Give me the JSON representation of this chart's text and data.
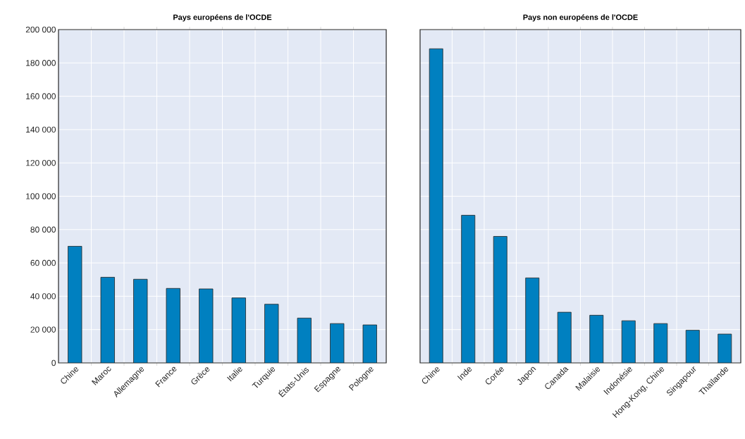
{
  "chart_data": [
    {
      "type": "bar",
      "title": "Pays européens de l'OCDE",
      "categories": [
        "Chine",
        "Maroc",
        "Allemagne",
        "France",
        "Grèce",
        "Italie",
        "Turquie",
        "États-Unis",
        "Espagne",
        "Pologne"
      ],
      "values": [
        70000,
        51400,
        50200,
        44700,
        44400,
        39000,
        35200,
        26900,
        23600,
        22800
      ],
      "color": "#0080c0",
      "ylim": [
        0,
        200000
      ],
      "yticks": [
        0,
        {
          "value": 20000,
          "label": "20 000"
        },
        {
          "value": 40000,
          "label": "40 000"
        },
        {
          "value": 60000,
          "label": "60 000"
        },
        {
          "value": 80000,
          "label": "80 000"
        },
        {
          "value": 100000,
          "label": "100 000"
        },
        {
          "value": 120000,
          "label": "120 000"
        },
        {
          "value": 140000,
          "label": "140 000"
        },
        {
          "value": 160000,
          "label": "160 000"
        },
        {
          "value": 180000,
          "label": "180 000"
        },
        {
          "value": 200000,
          "label": "200 000"
        }
      ],
      "grid": true
    },
    {
      "type": "bar",
      "title": "Pays non européens de l'OCDE",
      "categories": [
        "Chine",
        "Inde",
        "Corée",
        "Japon",
        "Canada",
        "Malaisie",
        "Indonésie",
        "Hong-Kong, Chine",
        "Singapour",
        "Thaïlande"
      ],
      "values": [
        188500,
        88600,
        75900,
        51000,
        30400,
        28600,
        25300,
        23600,
        19600,
        17300
      ],
      "color": "#0080c0",
      "ylim": [
        0,
        200000
      ],
      "yticks": [
        {
          "value": 0,
          "label": null
        },
        {
          "value": 20000,
          "label": null
        },
        {
          "value": 40000,
          "label": null
        },
        {
          "value": 60000,
          "label": null
        },
        {
          "value": 80000,
          "label": null
        },
        {
          "value": 100000,
          "label": null
        },
        {
          "value": 120000,
          "label": null
        },
        {
          "value": 140000,
          "label": null
        },
        {
          "value": 160000,
          "label": null
        },
        {
          "value": 180000,
          "label": null
        },
        {
          "value": 200000,
          "label": null
        }
      ],
      "grid": true,
      "tick_labels": "x"
    }
  ]
}
